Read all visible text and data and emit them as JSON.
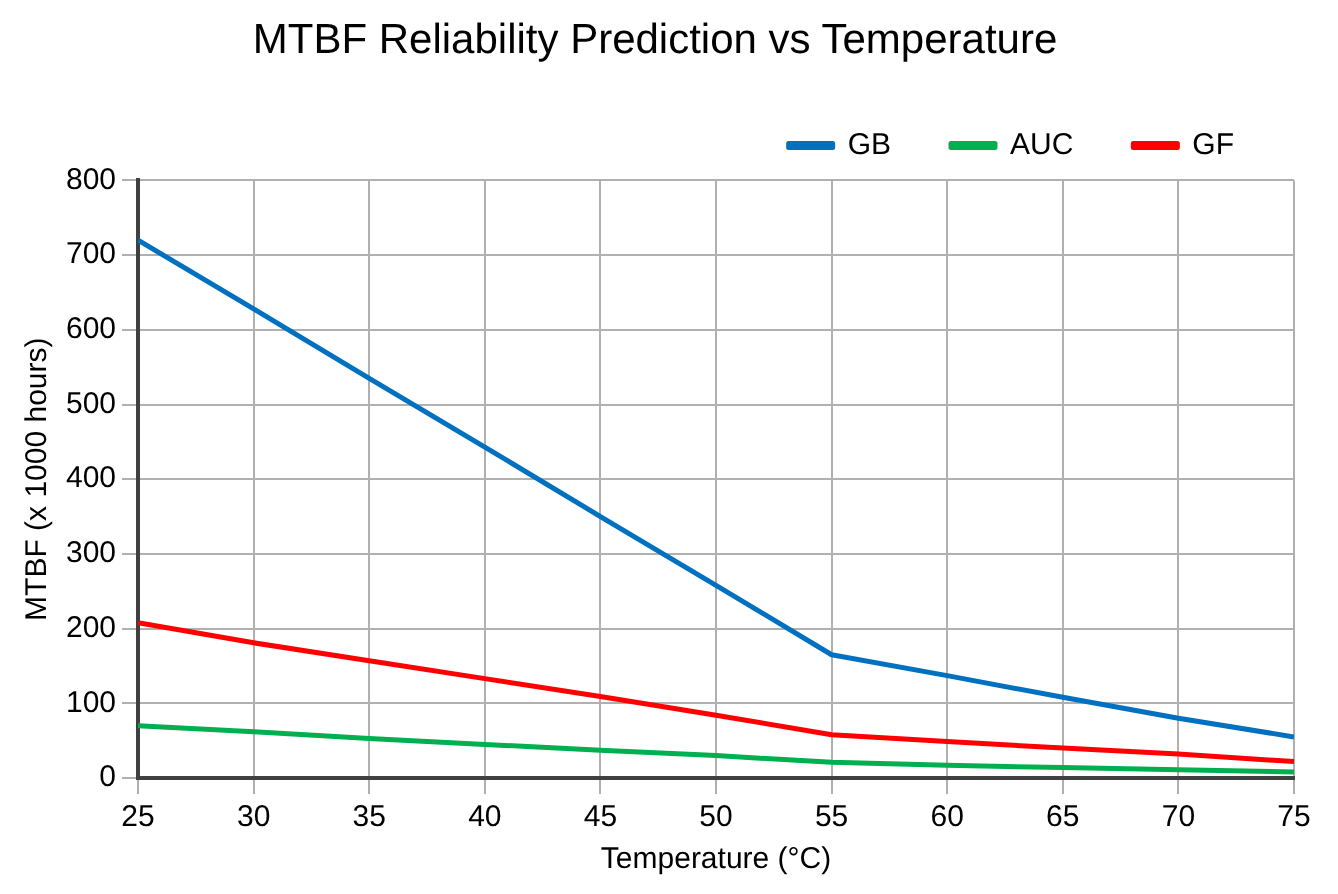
{
  "chart_data": {
    "type": "line",
    "title": "MTBF Reliability Prediction vs Temperature",
    "xlabel": "Temperature (°C)",
    "ylabel": "MTBF (x 1000 hours)",
    "x": [
      25,
      30,
      35,
      40,
      45,
      50,
      55,
      60,
      65,
      70,
      75
    ],
    "series": [
      {
        "name": "GB",
        "color": "#0070c0",
        "values": [
          720,
          628,
          535,
          443,
          350,
          258,
          165,
          137,
          108,
          80,
          55
        ]
      },
      {
        "name": "AUC",
        "color": "#00b050",
        "values": [
          70,
          62,
          53,
          45,
          37,
          30,
          21,
          17,
          14,
          11,
          8
        ]
      },
      {
        "name": "GF",
        "color": "#ff0000",
        "values": [
          208,
          181,
          157,
          133,
          109,
          84,
          58,
          49,
          40,
          32,
          22
        ]
      }
    ],
    "xlim": [
      25,
      75
    ],
    "xticks": [
      25,
      30,
      35,
      40,
      45,
      50,
      55,
      60,
      65,
      70,
      75
    ],
    "ylim": [
      0,
      800
    ],
    "yticks": [
      0,
      100,
      200,
      300,
      400,
      500,
      600,
      700,
      800
    ],
    "grid": true,
    "legend": "top right",
    "marker": "none",
    "line_style": "solid"
  }
}
